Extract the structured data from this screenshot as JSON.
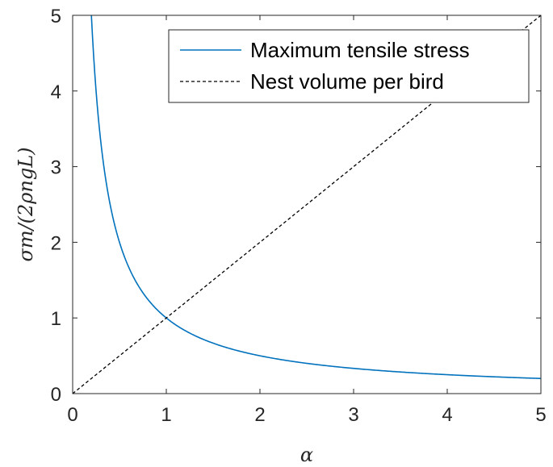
{
  "chart_data": {
    "type": "line",
    "title": "",
    "xlabel": "α",
    "ylabel": "σm/(2ρngL)",
    "xlim": [
      0,
      5
    ],
    "ylim": [
      0,
      5
    ],
    "x_ticks": [
      "0",
      "1",
      "2",
      "3",
      "4",
      "5"
    ],
    "y_ticks": [
      "0",
      "1",
      "2",
      "3",
      "4",
      "5"
    ],
    "grid": false,
    "legend_position": "top-right",
    "series": [
      {
        "name": "Maximum tensile stress",
        "color": "#0072BD",
        "style": "solid",
        "x": [
          0.2,
          0.25,
          0.3,
          0.35,
          0.4,
          0.5,
          0.6,
          0.7,
          0.8,
          0.9,
          1.0,
          1.25,
          1.5,
          1.75,
          2.0,
          2.5,
          3.0,
          3.5,
          4.0,
          4.5,
          5.0
        ],
        "y": [
          5.0,
          4.0,
          3.33,
          2.86,
          2.5,
          2.0,
          1.67,
          1.43,
          1.25,
          1.11,
          1.0,
          0.8,
          0.67,
          0.57,
          0.5,
          0.4,
          0.33,
          0.29,
          0.25,
          0.22,
          0.2
        ]
      },
      {
        "name": "Nest volume per bird",
        "color": "#000000",
        "style": "dashed",
        "x": [
          0,
          5
        ],
        "y": [
          0,
          5
        ]
      }
    ]
  }
}
